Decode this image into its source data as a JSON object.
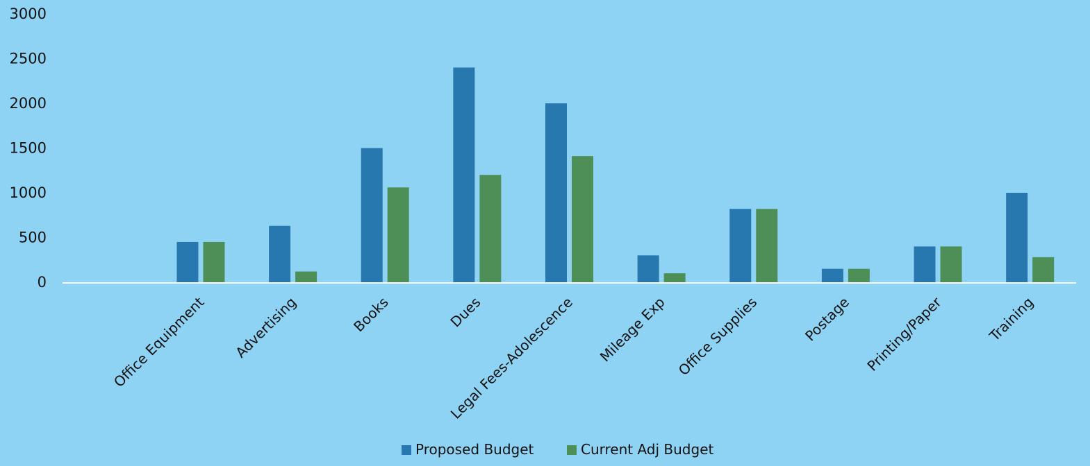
{
  "chart_data": {
    "type": "bar",
    "title": "",
    "xlabel": "",
    "ylabel": "",
    "ylim": [
      0,
      3000
    ],
    "yticks": [
      0,
      500,
      1000,
      1500,
      2000,
      2500,
      3000
    ],
    "grid": false,
    "legend_position": "bottom",
    "categories": [
      "",
      "Office Equipment",
      "Advertising",
      "Books",
      "Dues",
      "Legal Fees-Adolescence",
      "Mileage Exp",
      "Office Supplies",
      "Postage",
      "Printing/Paper",
      "Training"
    ],
    "series": [
      {
        "name": "Proposed Budget",
        "color": "#2878b0",
        "values": [
          0,
          450,
          630,
          1500,
          2400,
          2000,
          300,
          820,
          150,
          400,
          1000
        ]
      },
      {
        "name": "Current Adj Budget",
        "color": "#4e8f58",
        "values": [
          0,
          450,
          120,
          1060,
          1200,
          1410,
          100,
          820,
          150,
          400,
          280
        ]
      }
    ]
  }
}
